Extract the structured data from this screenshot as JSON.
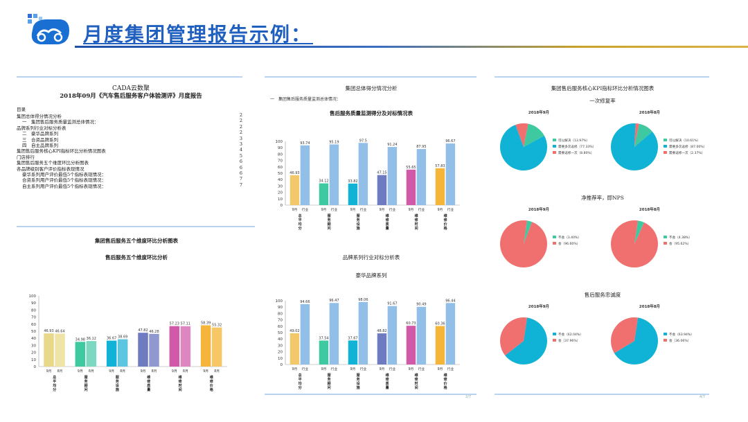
{
  "header": {
    "title": "月度集团管理报告示例："
  },
  "report": {
    "brand": "CADA云数聚",
    "title": "2018年09月《汽车售后服务客户体验测评》月度报告",
    "toc_heading": "目录",
    "toc": [
      {
        "text": "集团总体得分情况分析",
        "page": "2",
        "indent": 0
      },
      {
        "text": "一　集团售后服务质量监测总体情况：",
        "page": "2",
        "indent": 1
      },
      {
        "text": "品牌系列行业对标分析表",
        "page": "2",
        "indent": 0
      },
      {
        "text": "二　豪华品牌系列",
        "page": "2",
        "indent": 1
      },
      {
        "text": "三　合资品牌系列",
        "page": "3",
        "indent": 1
      },
      {
        "text": "四　自主品牌系列",
        "page": "3",
        "indent": 1
      },
      {
        "text": "集团售后服务核心KPI指标环比分析情况图表",
        "page": "4",
        "indent": 0
      },
      {
        "text": "门店排行",
        "page": "5",
        "indent": 0
      },
      {
        "text": "集团售后服务五个维度环比分析图表",
        "page": "6",
        "indent": 0
      },
      {
        "text": "各品牌级别客户评价指标表现情况",
        "page": "6",
        "indent": 0
      },
      {
        "text": "豪华系列用户评价最低5个指标表现情况：",
        "page": "6",
        "indent": 1
      },
      {
        "text": "合资系列用户评价最低5个指标表现情况：",
        "page": "7",
        "indent": 1
      },
      {
        "text": "自主系列用户评价最低5个指标表现情况：",
        "page": "7",
        "indent": 1
      }
    ]
  },
  "mid_panel": {
    "section_title": "集团总体得分情况分析",
    "sub_title": "一　集团售后服务质量监测总体情况：",
    "chart1_title": "售后服务质量监测得分及对标情况表",
    "section2_title": "品牌系列行业对标分析表",
    "chart2_title": "豪华品牌系列",
    "page_mark": "2/7"
  },
  "left_panel": {
    "section_title": "集团售后服务五个维度环比分析图表",
    "chart_title": "售后服务五个维度环比分析"
  },
  "right_panel": {
    "section_title": "集团售后服务核心KPI指标环比分析情况图表",
    "page_mark": "4/7",
    "groups": [
      {
        "title": "一次修复率",
        "pies": [
          {
            "label": "2018年9月",
            "legend": [
              "可以解决（13.97%）",
              "需要多次返修（77.33%）",
              "需要返修一次（8.80%）"
            ],
            "values": [
              13.97,
              77.33,
              8.8
            ],
            "colors": [
              "#3ec9a0",
              "#10b3d6",
              "#f07070"
            ]
          },
          {
            "label": "2018年8月",
            "legend": [
              "可以解决（10.61%）",
              "需要多次返修（87.00%）",
              "需要返修一次（2.37%）"
            ],
            "values": [
              10.61,
              87.0,
              2.37
            ],
            "colors": [
              "#3ec9a0",
              "#10b3d6",
              "#f07070"
            ]
          }
        ]
      },
      {
        "title": "净推荐率，即NPS",
        "pies": [
          {
            "label": "2018年9月",
            "legend": [
              "不会（3.40%）",
              "会（96.60%）"
            ],
            "values": [
              3.4,
              96.6
            ],
            "colors": [
              "#3ec9a0",
              "#f07070"
            ]
          },
          {
            "label": "2018年8月",
            "legend": [
              "不会（4.38%）",
              "会（95.62%）"
            ],
            "values": [
              4.38,
              95.62
            ],
            "colors": [
              "#3ec9a0",
              "#f07070"
            ]
          }
        ]
      },
      {
        "title": "售后服务忠诚度",
        "pies": [
          {
            "label": "2018年9月",
            "legend": [
              "不会（62.04%）",
              "会（37.96%）"
            ],
            "values": [
              62.04,
              37.96
            ],
            "colors": [
              "#10b3d6",
              "#f07070"
            ]
          },
          {
            "label": "2018年8月",
            "legend": [
              "不会（63.94%）",
              "会（36.06%）"
            ],
            "values": [
              63.94,
              36.06
            ],
            "colors": [
              "#10b3d6",
              "#f07070"
            ]
          }
        ]
      }
    ]
  },
  "chart_data": [
    {
      "type": "bar",
      "title": "售后服务质量监测得分及对标情况表",
      "categories": [
        "总平均分",
        "服务顾问",
        "服务设施",
        "维修质量",
        "维修时间",
        "维修价格"
      ],
      "pair_labels": [
        "9月",
        "行业"
      ],
      "series": [
        {
          "values": [
            46.93,
            34.12,
            33.82,
            47.15,
            55.65,
            57.83
          ],
          "colors": [
            "#f2c86a",
            "#3ec9a0",
            "#10b3d6",
            "#6f7bc0",
            "#d15aa8",
            "#f5b53a"
          ]
        },
        {
          "values": [
            93.74,
            95.19,
            97.5,
            91.24,
            87.95,
            96.67
          ],
          "color": "#92bfe8"
        }
      ],
      "yticks": [
        0,
        10,
        20,
        30,
        40,
        50,
        60,
        70,
        80,
        90,
        100
      ],
      "ylim": [
        0,
        100
      ]
    },
    {
      "type": "bar",
      "title": "豪华品牌系列",
      "categories": [
        "总平均分",
        "服务顾问",
        "服务设施",
        "维修质量",
        "维修时间",
        "维修价格"
      ],
      "pair_labels": [
        "9月",
        "行业"
      ],
      "series": [
        {
          "values": [
            49.02,
            37.54,
            37.67,
            48.82,
            60.73,
            60.36
          ],
          "colors": [
            "#f2c86a",
            "#3ec9a0",
            "#10b3d6",
            "#6f7bc0",
            "#d15aa8",
            "#f5b53a"
          ]
        },
        {
          "values": [
            94.66,
            96.47,
            98.06,
            91.67,
            90.49,
            96.44
          ],
          "color": "#92bfe8"
        }
      ],
      "yticks": [
        0,
        10,
        20,
        30,
        40,
        50,
        60,
        70,
        80,
        90,
        100
      ],
      "ylim": [
        0,
        100
      ]
    },
    {
      "type": "bar",
      "title": "售后服务五个维度环比分析",
      "categories": [
        "总平均分",
        "服务顾问",
        "服务设施",
        "维修质量",
        "维修时间",
        "维修价格"
      ],
      "pair_labels": [
        "9月",
        "8月"
      ],
      "series": [
        {
          "values": [
            46.93,
            34.98,
            36.67,
            47.82,
            57.23,
            58.39
          ],
          "colors": [
            "#e9d78a",
            "#3ec9a0",
            "#10b3d6",
            "#6f7bc0",
            "#d15aa8",
            "#f5b53a"
          ]
        },
        {
          "values": [
            46.64,
            36.12,
            38.69,
            46.28,
            57.11,
            55.32
          ],
          "colors": [
            "#efe3a6",
            "#7ad9c0",
            "#5cc6e0",
            "#8f98cf",
            "#de86bf",
            "#f7c767"
          ]
        }
      ],
      "yticks": [
        0,
        10,
        20,
        30,
        40,
        50,
        60,
        70,
        80,
        90,
        100
      ],
      "ylim": [
        0,
        100
      ]
    }
  ]
}
